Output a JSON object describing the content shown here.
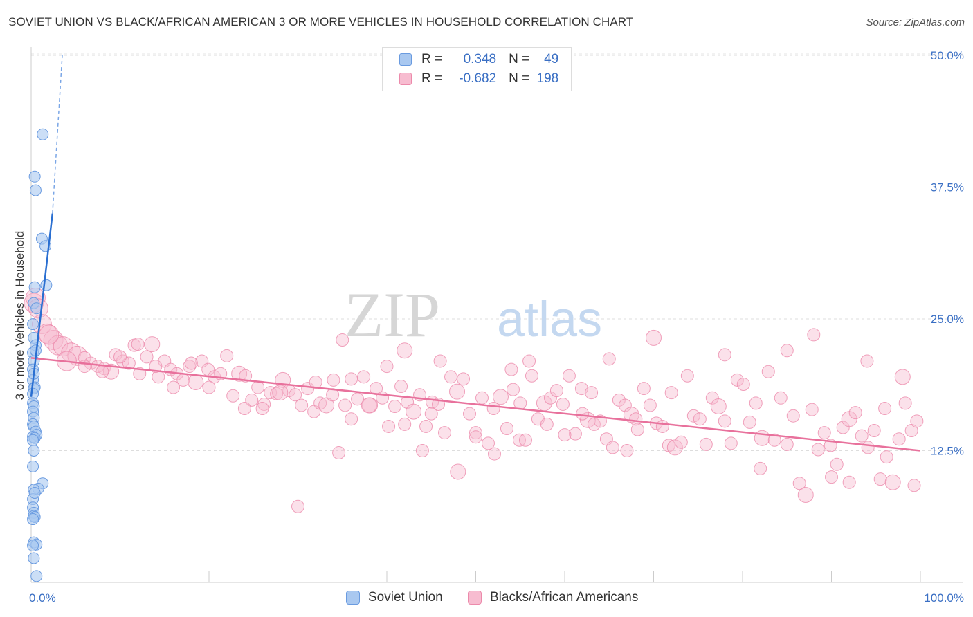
{
  "header": {
    "title": "SOVIET UNION VS BLACK/AFRICAN AMERICAN 3 OR MORE VEHICLES IN HOUSEHOLD CORRELATION CHART",
    "source": "Source: ZipAtlas.com"
  },
  "watermark": {
    "part1": "ZIP",
    "part2": "atlas"
  },
  "legend": {
    "rows": [
      {
        "r_label": "R =",
        "r_value": "0.348",
        "n_label": "N =",
        "n_value": "49",
        "color": "#a9c8f0",
        "border": "#6a9be0"
      },
      {
        "r_label": "R =",
        "r_value": "-0.682",
        "n_label": "N =",
        "n_value": "198",
        "color": "#f7bcd0",
        "border": "#ec8aab"
      }
    ]
  },
  "chart_data": {
    "type": "scatter",
    "title": "SOVIET UNION VS BLACK/AFRICAN AMERICAN 3 OR MORE VEHICLES IN HOUSEHOLD CORRELATION CHART",
    "xlabel": "",
    "ylabel": "3 or more Vehicles in Household",
    "xlim": [
      0,
      100
    ],
    "ylim": [
      0,
      50
    ],
    "x_tick_labels": [
      "0.0%",
      "100.0%"
    ],
    "y_ticks": [
      12.5,
      25.0,
      37.5,
      50.0
    ],
    "y_tick_labels": [
      "12.5%",
      "25.0%",
      "37.5%",
      "50.0%"
    ],
    "grid": "horizontal dashed",
    "legend_position": "bottom",
    "series": [
      {
        "name": "Soviet Union",
        "color": "#a9c8f0",
        "stroke": "#6a9be0",
        "trend": {
          "x": [
            0,
            2.4
          ],
          "y": [
            17.6,
            35.0
          ],
          "extended_to": [
            3.5,
            50.0
          ]
        },
        "points": [
          [
            1.3,
            42.5
          ],
          [
            0.4,
            38.5
          ],
          [
            0.5,
            37.2
          ],
          [
            1.2,
            32.6
          ],
          [
            1.6,
            31.9
          ],
          [
            1.7,
            28.2
          ],
          [
            0.4,
            28.0
          ],
          [
            0.3,
            26.5
          ],
          [
            0.6,
            26.0
          ],
          [
            0.2,
            24.5
          ],
          [
            0.3,
            23.2
          ],
          [
            0.5,
            22.5
          ],
          [
            0.2,
            21.8
          ],
          [
            0.3,
            21.0
          ],
          [
            0.2,
            20.2
          ],
          [
            0.2,
            19.2
          ],
          [
            0.4,
            18.5
          ],
          [
            0.3,
            18.4
          ],
          [
            0.2,
            17.9
          ],
          [
            0.2,
            17.0
          ],
          [
            0.3,
            16.7
          ],
          [
            0.2,
            16.2
          ],
          [
            0.3,
            15.6
          ],
          [
            0.2,
            15.0
          ],
          [
            0.3,
            14.8
          ],
          [
            0.5,
            14.3
          ],
          [
            0.6,
            14.0
          ],
          [
            0.2,
            13.8
          ],
          [
            0.4,
            13.7
          ],
          [
            0.2,
            13.5
          ],
          [
            0.3,
            12.5
          ],
          [
            1.3,
            9.4
          ],
          [
            0.8,
            8.9
          ],
          [
            0.3,
            8.8
          ],
          [
            0.2,
            7.9
          ],
          [
            0.2,
            7.1
          ],
          [
            0.3,
            6.6
          ],
          [
            0.3,
            6.3
          ],
          [
            0.4,
            6.2
          ],
          [
            0.2,
            6.0
          ],
          [
            0.3,
            3.8
          ],
          [
            0.6,
            3.6
          ],
          [
            0.2,
            3.5
          ],
          [
            0.3,
            2.3
          ],
          [
            0.6,
            0.6
          ],
          [
            0.4,
            8.5
          ],
          [
            0.2,
            11.0
          ],
          [
            0.3,
            19.8
          ],
          [
            0.5,
            22.0
          ]
        ]
      },
      {
        "name": "Blacks/African Americans",
        "color": "#f7bcd0",
        "stroke": "#ec8aab",
        "trend": {
          "x": [
            0,
            100
          ],
          "y": [
            21.3,
            12.5
          ]
        },
        "points": [
          [
            0.3,
            26.5
          ],
          [
            0.5,
            27.0
          ],
          [
            0.8,
            26.0
          ],
          [
            1.2,
            24.5
          ],
          [
            1.8,
            23.6
          ],
          [
            2.5,
            23.0
          ],
          [
            3.0,
            22.5
          ],
          [
            3.6,
            22.4
          ],
          [
            4.5,
            21.8
          ],
          [
            5.2,
            21.5
          ],
          [
            6.0,
            21.3
          ],
          [
            6.7,
            20.8
          ],
          [
            7.5,
            20.5
          ],
          [
            8.2,
            20.3
          ],
          [
            9.0,
            20.0
          ],
          [
            9.5,
            21.6
          ],
          [
            10.3,
            21.0
          ],
          [
            11.0,
            20.8
          ],
          [
            11.6,
            22.5
          ],
          [
            12.2,
            19.8
          ],
          [
            13.0,
            21.4
          ],
          [
            13.6,
            22.6
          ],
          [
            14.3,
            19.5
          ],
          [
            15.0,
            21.0
          ],
          [
            15.7,
            20.2
          ],
          [
            16.4,
            19.8
          ],
          [
            17.1,
            19.2
          ],
          [
            17.8,
            20.5
          ],
          [
            18.5,
            19.0
          ],
          [
            19.2,
            21.0
          ],
          [
            19.9,
            20.2
          ],
          [
            20.6,
            19.5
          ],
          [
            21.3,
            19.8
          ],
          [
            22.0,
            21.5
          ],
          [
            22.7,
            17.7
          ],
          [
            23.4,
            19.8
          ],
          [
            24.1,
            19.6
          ],
          [
            24.8,
            17.3
          ],
          [
            25.5,
            18.5
          ],
          [
            26.2,
            16.9
          ],
          [
            26.9,
            18.0
          ],
          [
            27.6,
            17.9
          ],
          [
            28.3,
            19.2
          ],
          [
            29.0,
            18.2
          ],
          [
            29.7,
            17.8
          ],
          [
            30.4,
            16.8
          ],
          [
            31.1,
            18.4
          ],
          [
            31.8,
            16.2
          ],
          [
            32.5,
            17.0
          ],
          [
            33.2,
            16.8
          ],
          [
            33.9,
            17.8
          ],
          [
            34.6,
            12.3
          ],
          [
            35.3,
            16.8
          ],
          [
            36.0,
            19.3
          ],
          [
            36.7,
            17.4
          ],
          [
            37.4,
            19.5
          ],
          [
            38.1,
            16.8
          ],
          [
            38.8,
            18.4
          ],
          [
            39.5,
            17.5
          ],
          [
            40.2,
            14.8
          ],
          [
            40.9,
            16.7
          ],
          [
            41.6,
            18.6
          ],
          [
            42.3,
            17.1
          ],
          [
            43.0,
            16.2
          ],
          [
            43.7,
            17.8
          ],
          [
            44.4,
            14.8
          ],
          [
            45.1,
            17.1
          ],
          [
            45.8,
            16.9
          ],
          [
            46.5,
            14.2
          ],
          [
            47.2,
            19.5
          ],
          [
            47.9,
            18.1
          ],
          [
            48.6,
            19.3
          ],
          [
            49.3,
            16.0
          ],
          [
            50.0,
            14.2
          ],
          [
            50.7,
            17.5
          ],
          [
            51.4,
            13.2
          ],
          [
            52.1,
            12.2
          ],
          [
            52.8,
            17.6
          ],
          [
            53.5,
            14.6
          ],
          [
            54.2,
            18.3
          ],
          [
            54.9,
            13.5
          ],
          [
            55.6,
            13.5
          ],
          [
            56.3,
            19.6
          ],
          [
            57.0,
            15.5
          ],
          [
            57.7,
            17.0
          ],
          [
            58.4,
            17.5
          ],
          [
            59.1,
            18.2
          ],
          [
            59.8,
            16.9
          ],
          [
            60.5,
            19.6
          ],
          [
            61.2,
            14.1
          ],
          [
            61.9,
            18.4
          ],
          [
            62.6,
            15.4
          ],
          [
            63.3,
            15.0
          ],
          [
            64.0,
            15.3
          ],
          [
            64.7,
            13.6
          ],
          [
            65.4,
            12.8
          ],
          [
            66.1,
            17.3
          ],
          [
            66.8,
            16.8
          ],
          [
            67.5,
            15.9
          ],
          [
            68.2,
            14.5
          ],
          [
            68.9,
            18.4
          ],
          [
            69.6,
            16.8
          ],
          [
            70.3,
            15.1
          ],
          [
            71.0,
            14.8
          ],
          [
            71.7,
            13.0
          ],
          [
            72.4,
            12.8
          ],
          [
            73.1,
            13.3
          ],
          [
            73.8,
            19.6
          ],
          [
            74.5,
            15.8
          ],
          [
            75.2,
            15.5
          ],
          [
            75.9,
            13.1
          ],
          [
            76.6,
            17.5
          ],
          [
            77.3,
            16.7
          ],
          [
            78.0,
            15.3
          ],
          [
            78.7,
            13.2
          ],
          [
            79.4,
            19.2
          ],
          [
            80.1,
            18.8
          ],
          [
            80.8,
            15.2
          ],
          [
            81.5,
            17.0
          ],
          [
            82.2,
            13.7
          ],
          [
            82.9,
            20.0
          ],
          [
            83.6,
            13.5
          ],
          [
            84.3,
            17.5
          ],
          [
            85.0,
            13.1
          ],
          [
            85.7,
            15.8
          ],
          [
            86.4,
            9.4
          ],
          [
            87.1,
            8.3
          ],
          [
            87.8,
            16.4
          ],
          [
            88.5,
            12.6
          ],
          [
            89.2,
            14.2
          ],
          [
            89.9,
            13.0
          ],
          [
            90.6,
            11.2
          ],
          [
            91.3,
            14.7
          ],
          [
            92.0,
            15.5
          ],
          [
            92.7,
            16.1
          ],
          [
            93.4,
            13.9
          ],
          [
            94.1,
            12.8
          ],
          [
            94.8,
            14.4
          ],
          [
            95.5,
            9.8
          ],
          [
            96.2,
            11.9
          ],
          [
            96.9,
            9.5
          ],
          [
            97.6,
            13.6
          ],
          [
            98.3,
            17.0
          ],
          [
            99.0,
            14.4
          ],
          [
            99.3,
            9.2
          ],
          [
            99.6,
            15.3
          ],
          [
            35.0,
            23.0
          ],
          [
            42.0,
            22.0
          ],
          [
            46.0,
            21.0
          ],
          [
            54.0,
            20.2
          ],
          [
            65.0,
            21.2
          ],
          [
            78.0,
            21.6
          ],
          [
            85.0,
            22.0
          ],
          [
            94.0,
            21.0
          ],
          [
            98.0,
            19.5
          ],
          [
            96.0,
            16.5
          ],
          [
            88.0,
            23.5
          ],
          [
            30.0,
            7.2
          ],
          [
            72.0,
            18.0
          ],
          [
            62.0,
            16.0
          ],
          [
            58.0,
            15.0
          ],
          [
            48.0,
            10.5
          ],
          [
            50.0,
            13.8
          ],
          [
            44.0,
            12.5
          ],
          [
            67.0,
            12.5
          ],
          [
            82.0,
            10.8
          ],
          [
            90.0,
            10.0
          ],
          [
            92.0,
            9.5
          ],
          [
            70.0,
            23.2
          ],
          [
            56.0,
            21.0
          ],
          [
            52.0,
            16.5
          ],
          [
            60.0,
            14.0
          ],
          [
            36.0,
            15.5
          ],
          [
            40.0,
            20.5
          ],
          [
            32.0,
            19.0
          ],
          [
            28.0,
            18.0
          ],
          [
            24.0,
            16.5
          ],
          [
            20.0,
            18.5
          ],
          [
            16.0,
            18.5
          ],
          [
            12.0,
            22.6
          ],
          [
            8.0,
            20.0
          ],
          [
            4.0,
            21.0
          ],
          [
            2.0,
            23.5
          ],
          [
            6.0,
            20.5
          ],
          [
            10.0,
            21.4
          ],
          [
            14.0,
            20.5
          ],
          [
            18.0,
            20.8
          ],
          [
            26.0,
            16.5
          ],
          [
            34.0,
            19.2
          ],
          [
            38.0,
            16.8
          ],
          [
            42.0,
            15.0
          ],
          [
            45.0,
            16.0
          ],
          [
            55.0,
            17.0
          ],
          [
            63.0,
            18.0
          ],
          [
            68.0,
            15.5
          ]
        ]
      }
    ]
  }
}
